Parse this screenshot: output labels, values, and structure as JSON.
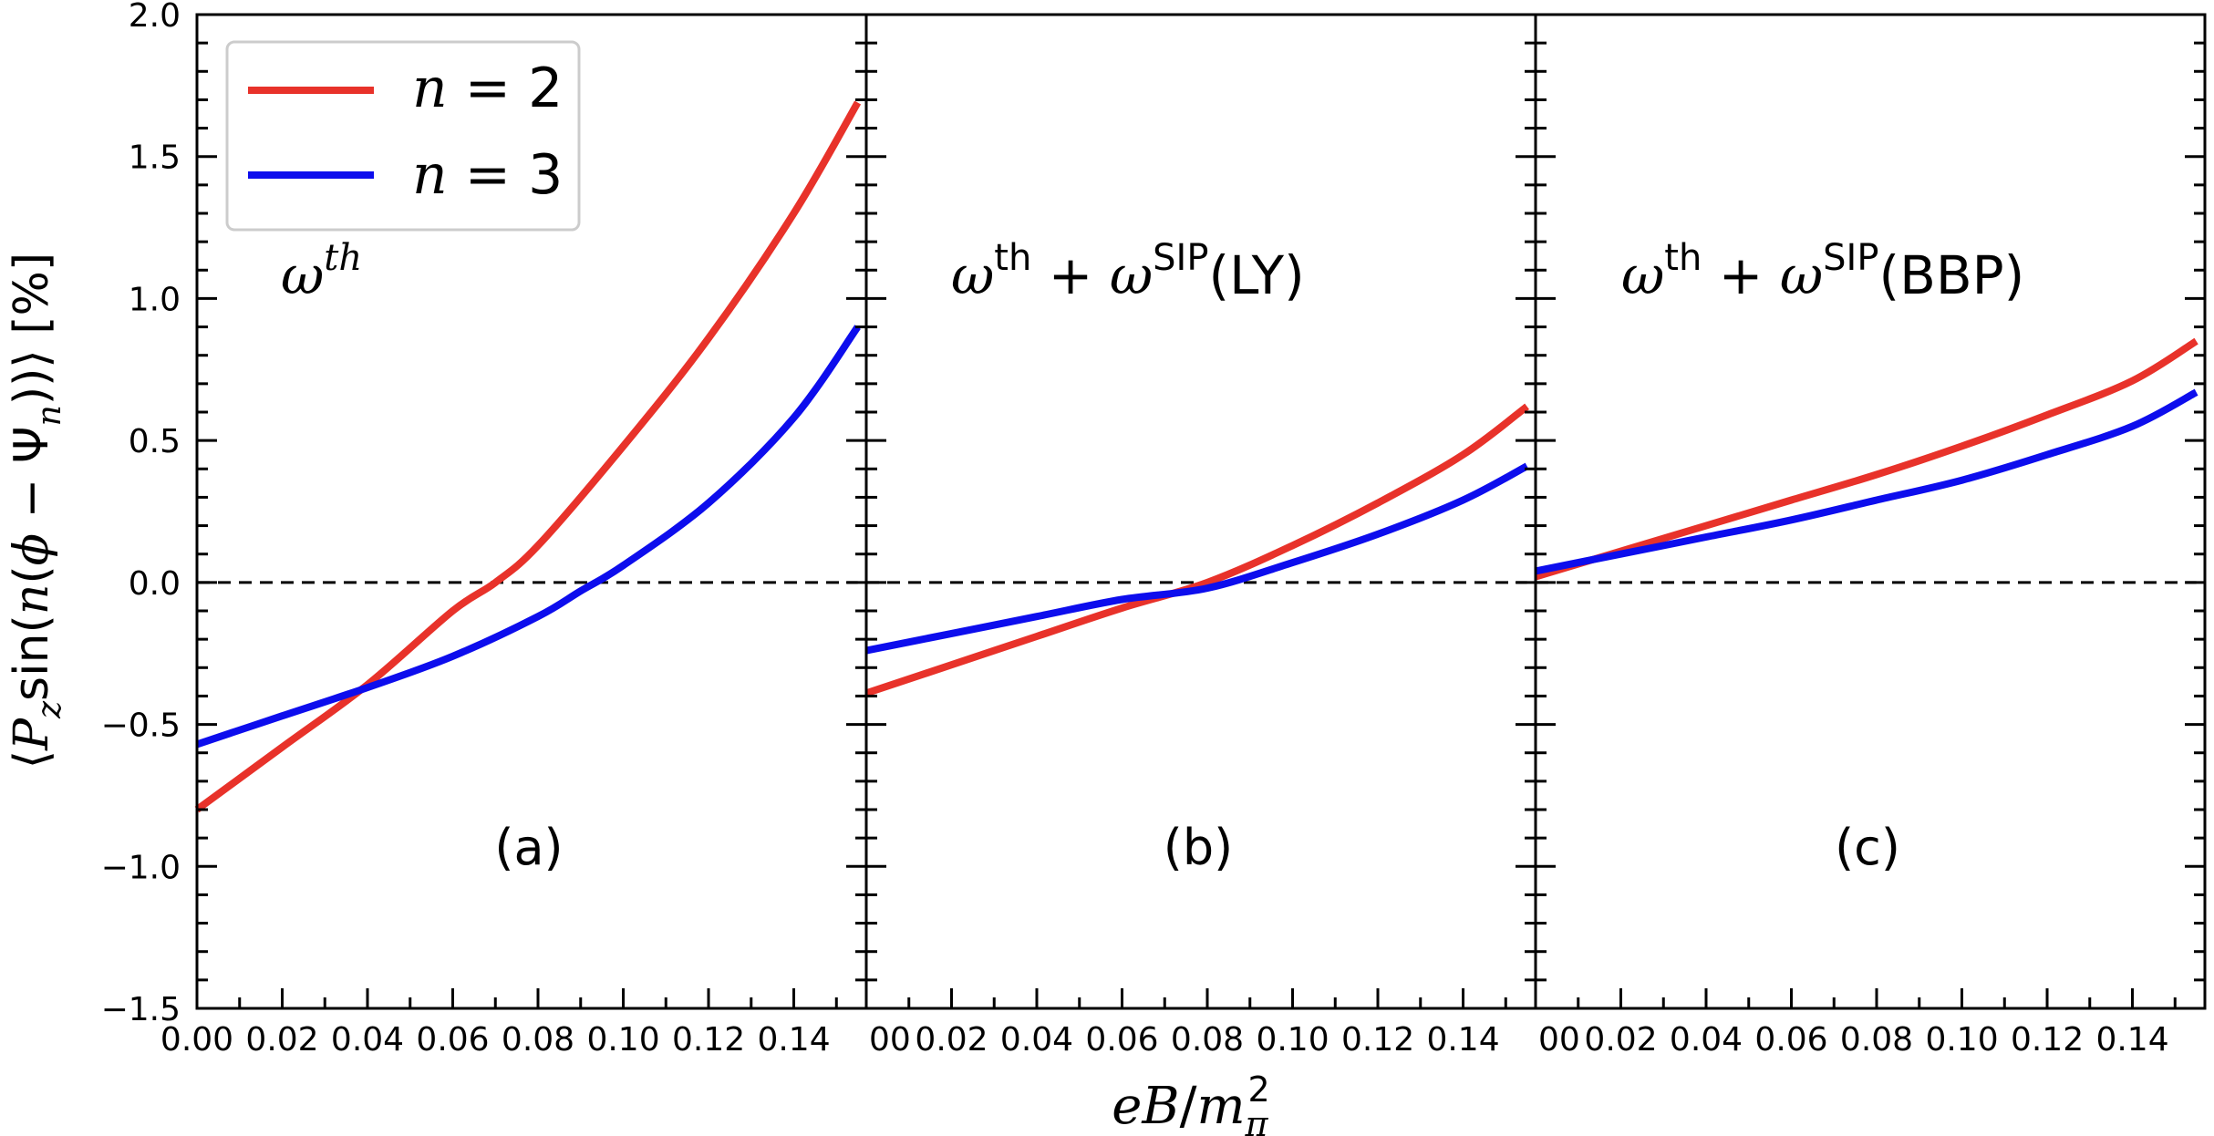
{
  "chart_data": {
    "type": "line",
    "ylabel": "⟨P_z sin(n(ϕ − Ψ_n))⟩ [%]",
    "xlabel": "eB/m_π^2",
    "ylim": [
      -1.5,
      2.0
    ],
    "xlim": [
      0.0,
      0.157
    ],
    "y_ticks": [
      "−1.5",
      "−1.0",
      "−0.5",
      "0.0",
      "0.5",
      "1.0",
      "1.5",
      "2.0"
    ],
    "y_tick_values": [
      -1.5,
      -1.0,
      -0.5,
      0.0,
      0.5,
      1.0,
      1.5,
      2.0
    ],
    "x_tick_values": [
      0.0,
      0.02,
      0.04,
      0.06,
      0.08,
      0.1,
      0.12,
      0.14
    ],
    "x_tick_labels_full": [
      "0.00",
      "0.02",
      "0.04",
      "0.06",
      "0.08",
      "0.10",
      "0.12",
      "0.14"
    ],
    "x_tick_labels_cut": [
      "00",
      "0.02",
      "0.04",
      "0.06",
      "0.08",
      "0.10",
      "0.12",
      "0.14"
    ],
    "reference_line": {
      "y": 0.0,
      "style": "dashed",
      "color": "#000000"
    },
    "legend": {
      "location": "top-left",
      "entries": [
        {
          "n_symbol": "n",
          "eq": " = ",
          "value": "2",
          "color": "#e8322a"
        },
        {
          "n_symbol": "n",
          "eq": " = ",
          "value": "3",
          "color": "#0d0ded"
        }
      ]
    },
    "panels": [
      {
        "id": "a",
        "label": "(a)",
        "title": "ω^th",
        "title_parts": {
          "base1": "ω",
          "sup1": "th"
        },
        "series": [
          {
            "name": "n = 2",
            "color": "#e8322a",
            "x": [
              0.0,
              0.02,
              0.04,
              0.06,
              0.07,
              0.08,
              0.1,
              0.12,
              0.14,
              0.155
            ],
            "y": [
              -0.8,
              -0.58,
              -0.36,
              -0.1,
              0.0,
              0.13,
              0.48,
              0.86,
              1.3,
              1.69
            ]
          },
          {
            "name": "n = 3",
            "color": "#0d0ded",
            "x": [
              0.0,
              0.02,
              0.04,
              0.06,
              0.08,
              0.09,
              0.1,
              0.12,
              0.14,
              0.155
            ],
            "y": [
              -0.57,
              -0.47,
              -0.37,
              -0.26,
              -0.12,
              -0.03,
              0.06,
              0.28,
              0.58,
              0.9
            ]
          }
        ]
      },
      {
        "id": "b",
        "label": "(b)",
        "title": "ω^th + ω^SIP(LY)",
        "title_parts": {
          "base1": "ω",
          "sup1": "th",
          "plus": " + ",
          "base2": "ω",
          "sup2": "SIP",
          "suffix": "(LY)"
        },
        "series": [
          {
            "name": "n = 2",
            "color": "#e8322a",
            "x": [
              0.0,
              0.02,
              0.04,
              0.06,
              0.08,
              0.1,
              0.12,
              0.14,
              0.155
            ],
            "y": [
              -0.39,
              -0.29,
              -0.19,
              -0.09,
              0.0,
              0.13,
              0.28,
              0.45,
              0.62
            ]
          },
          {
            "name": "n = 3",
            "color": "#0d0ded",
            "x": [
              0.0,
              0.02,
              0.04,
              0.06,
              0.08,
              0.1,
              0.12,
              0.14,
              0.155
            ],
            "y": [
              -0.24,
              -0.18,
              -0.12,
              -0.06,
              -0.02,
              0.07,
              0.17,
              0.29,
              0.41
            ]
          }
        ]
      },
      {
        "id": "c",
        "label": "(c)",
        "title": "ω^th + ω^SIP(BBP)",
        "title_parts": {
          "base1": "ω",
          "sup1": "th",
          "plus": " + ",
          "base2": "ω",
          "sup2": "SIP",
          "suffix": "(BBP)"
        },
        "series": [
          {
            "name": "n = 2",
            "color": "#e8322a",
            "x": [
              0.0,
              0.02,
              0.04,
              0.06,
              0.08,
              0.1,
              0.12,
              0.14,
              0.155
            ],
            "y": [
              0.02,
              0.11,
              0.2,
              0.29,
              0.38,
              0.48,
              0.59,
              0.71,
              0.85
            ]
          },
          {
            "name": "n = 3",
            "color": "#0d0ded",
            "x": [
              0.0,
              0.02,
              0.04,
              0.06,
              0.08,
              0.1,
              0.12,
              0.14,
              0.155
            ],
            "y": [
              0.04,
              0.1,
              0.16,
              0.22,
              0.29,
              0.36,
              0.45,
              0.55,
              0.67
            ]
          }
        ]
      }
    ]
  }
}
